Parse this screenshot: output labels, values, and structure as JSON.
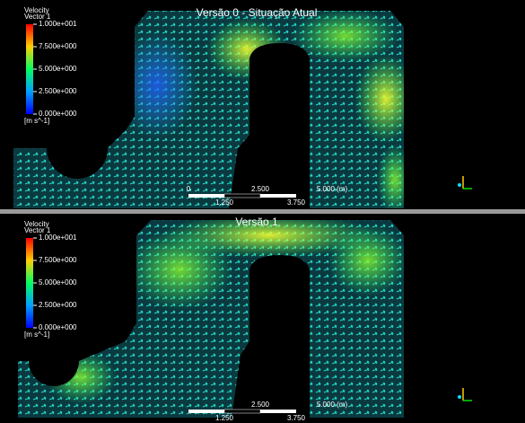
{
  "panels": [
    {
      "title": "Versão 0 - Situação Atual",
      "legend": {
        "title": "Velocity",
        "subtitle": "Vector 1",
        "labels": [
          "1.000e+001",
          "7.500e+000",
          "5.000e+000",
          "2.500e+000",
          "0.000e+000"
        ],
        "unit": "[m s^-1]"
      },
      "scale": {
        "top": [
          "0",
          "2.500",
          "5.000 (m)"
        ],
        "bottom": [
          "1.250",
          "3.750"
        ]
      }
    },
    {
      "title": "Versão 1",
      "legend": {
        "title": "Velocity",
        "subtitle": "Vector 1",
        "labels": [
          "1.000e+001",
          "7.500e+000",
          "5.000e+000",
          "2.500e+000",
          "0.000e+000"
        ],
        "unit": "[m s^-1]"
      },
      "scale": {
        "top": [
          "2.500",
          "5.000 (m)"
        ],
        "bottom": [
          "1.250",
          "3.750"
        ]
      }
    }
  ]
}
